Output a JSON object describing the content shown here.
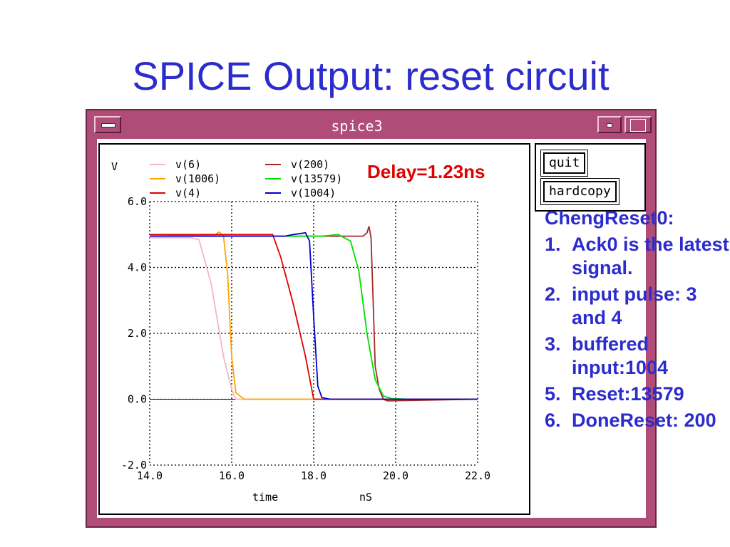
{
  "slide": {
    "title": "SPICE Output: reset circuit"
  },
  "window": {
    "title": "spice3",
    "buttons": {
      "quit": "quit",
      "hardcopy": "hardcopy"
    }
  },
  "annotation": {
    "delay": "Delay=1.23ns"
  },
  "notes": {
    "heading": "ChengReset0:",
    "items": [
      {
        "num": "1.",
        "text": "Ack0 is the latest signal."
      },
      {
        "num": "2.",
        "text": "input pulse: 3 and 4"
      },
      {
        "num": "3.",
        "text": "buffered input:1004"
      },
      {
        "num": "5.",
        "text": "Reset:13579"
      },
      {
        "num": "6.",
        "text": "DoneReset: 200"
      }
    ]
  },
  "chart_data": {
    "type": "line",
    "ylabel": "V",
    "xlabel": "time",
    "xunit": "nS",
    "xlim": [
      14.0,
      22.0
    ],
    "ylim": [
      -2.0,
      6.0
    ],
    "xticks": [
      "14.0",
      "16.0",
      "18.0",
      "20.0",
      "22.0"
    ],
    "yticks": [
      "6.0",
      "4.0",
      "2.0",
      "0.0",
      "-2.0"
    ],
    "grid": true,
    "series": [
      {
        "name": "v(6)",
        "color": "#f4b6c2",
        "x": [
          14.0,
          15.0,
          15.2,
          15.5,
          15.8,
          16.0,
          16.1,
          22.0
        ],
        "y": [
          4.9,
          4.9,
          4.85,
          3.5,
          1.3,
          0.3,
          0.0,
          0.0
        ]
      },
      {
        "name": "v(1006)",
        "color": "#ffa500",
        "x": [
          14.0,
          15.6,
          15.7,
          15.8,
          15.9,
          16.0,
          16.1,
          16.3,
          22.0
        ],
        "y": [
          4.95,
          5.0,
          5.08,
          4.95,
          3.8,
          1.3,
          0.2,
          0.0,
          0.0
        ]
      },
      {
        "name": "v(4)",
        "color": "#e00000",
        "x": [
          14.0,
          17.0,
          17.2,
          17.5,
          17.8,
          18.0,
          22.0
        ],
        "y": [
          5.0,
          5.0,
          4.3,
          2.9,
          1.3,
          0.0,
          0.0
        ]
      },
      {
        "name": "v(200)",
        "color": "#a52a2a",
        "x": [
          14.0,
          19.2,
          19.3,
          19.35,
          19.4,
          19.45,
          19.5,
          19.6,
          19.7,
          19.8,
          22.0
        ],
        "y": [
          4.95,
          4.95,
          5.05,
          5.25,
          4.9,
          3.0,
          1.0,
          0.3,
          0.0,
          -0.05,
          0.0
        ]
      },
      {
        "name": "v(13579)",
        "color": "#00dd00",
        "x": [
          14.0,
          18.2,
          18.6,
          18.9,
          19.1,
          19.3,
          19.5,
          19.7,
          19.9,
          20.3
        ],
        "y": [
          4.95,
          4.95,
          5.0,
          4.8,
          3.9,
          2.0,
          0.6,
          0.1,
          0.02,
          0.0
        ]
      },
      {
        "name": "v(1004)",
        "color": "#0000cc",
        "x": [
          14.0,
          17.3,
          17.5,
          17.8,
          17.9,
          18.0,
          18.1,
          18.2,
          18.4,
          22.0
        ],
        "y": [
          4.95,
          4.95,
          5.0,
          5.05,
          4.8,
          2.5,
          0.4,
          0.05,
          0.0,
          0.0
        ]
      }
    ]
  }
}
